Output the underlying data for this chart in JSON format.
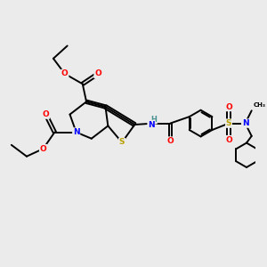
{
  "background_color": "#ebebeb",
  "bond_color": "#000000",
  "bond_width": 1.4,
  "atom_colors": {
    "C": "#000000",
    "H": "#4a9090",
    "N": "#0000ff",
    "O": "#ff0000",
    "S": "#b8a000"
  },
  "figure_size": [
    3.0,
    3.0
  ],
  "dpi": 100
}
